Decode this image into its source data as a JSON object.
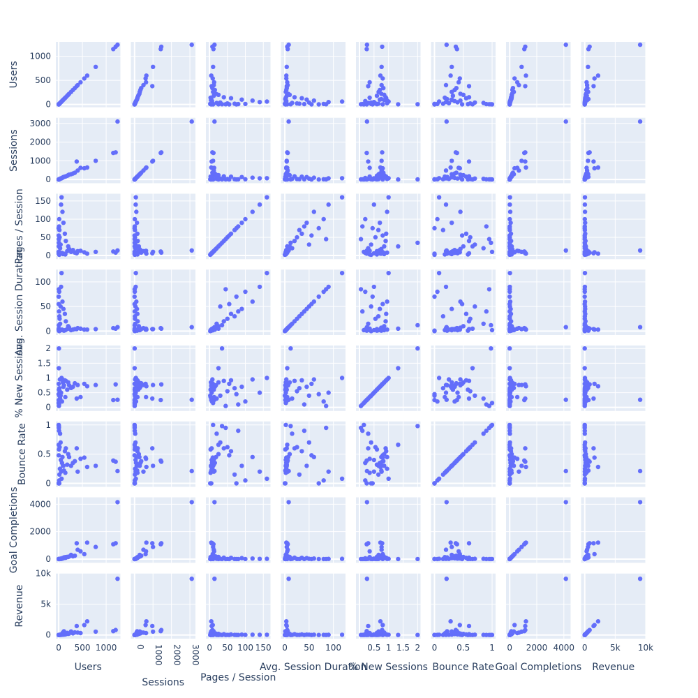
{
  "chart_data": {
    "type": "scatter",
    "subtype": "scatter-matrix",
    "marker_color": "#636efa",
    "background_color": "#e5ecf6",
    "grid_color": "#ffffff",
    "grid": true,
    "dimensions": [
      {
        "label": "Users",
        "range": [
          -60,
          1300
        ],
        "ticks": [
          {
            "v": 0,
            "t": "0"
          },
          {
            "v": 500,
            "t": "500"
          },
          {
            "v": 1000,
            "t": "1000"
          }
        ],
        "x_ticks": [
          {
            "v": 0,
            "t": "0"
          },
          {
            "v": 500,
            "t": "500"
          },
          {
            "v": 1000,
            "t": "1000"
          }
        ]
      },
      {
        "label": "Sessions",
        "range": [
          -200,
          3300
        ],
        "ticks": [
          {
            "v": 0,
            "t": "0"
          },
          {
            "v": 1000,
            "t": "1000"
          },
          {
            "v": 2000,
            "t": "2000"
          },
          {
            "v": 3000,
            "t": "3000"
          }
        ],
        "x_ticks": [
          {
            "v": 0,
            "t": "0"
          },
          {
            "v": 1000,
            "t": "1000"
          },
          {
            "v": 2000,
            "t": "2000"
          },
          {
            "v": 3000,
            "t": "3000"
          }
        ]
      },
      {
        "label": "Pages / Session",
        "range": [
          -10,
          170
        ],
        "ticks": [
          {
            "v": 0,
            "t": "0"
          },
          {
            "v": 50,
            "t": "50"
          },
          {
            "v": 100,
            "t": "100"
          },
          {
            "v": 150,
            "t": "150"
          }
        ],
        "x_ticks": [
          {
            "v": 0,
            "t": "0"
          },
          {
            "v": 50,
            "t": "50"
          },
          {
            "v": 100,
            "t": "100"
          },
          {
            "v": 150,
            "t": "150"
          }
        ]
      },
      {
        "label": "Avg. Session Duration",
        "range": [
          -8,
          125
        ],
        "ticks": [
          {
            "v": 0,
            "t": "0"
          },
          {
            "v": 50,
            "t": "50"
          },
          {
            "v": 100,
            "t": "100"
          }
        ],
        "x_ticks": [
          {
            "v": 0,
            "t": "0"
          },
          {
            "v": 50,
            "t": "50"
          },
          {
            "v": 100,
            "t": "100"
          }
        ]
      },
      {
        "label": "% New Sessions",
        "range": [
          -0.12,
          2.1
        ],
        "ticks": [
          {
            "v": 0,
            "t": "0"
          },
          {
            "v": 0.5,
            "t": "0.5"
          },
          {
            "v": 1,
            "t": "1"
          },
          {
            "v": 1.5,
            "t": "1.5"
          },
          {
            "v": 2,
            "t": "2"
          }
        ],
        "x_ticks": [
          {
            "v": 0.5,
            "t": "0.5"
          },
          {
            "v": 1,
            "t": "1"
          },
          {
            "v": 1.5,
            "t": "1.5"
          },
          {
            "v": 2,
            "t": "2"
          }
        ]
      },
      {
        "label": "Bounce Rate",
        "range": [
          -0.06,
          1.06
        ],
        "ticks": [
          {
            "v": 0,
            "t": "0"
          },
          {
            "v": 0.5,
            "t": "0.5"
          },
          {
            "v": 1,
            "t": "1"
          }
        ],
        "x_ticks": [
          {
            "v": 0,
            "t": "0"
          },
          {
            "v": 0.5,
            "t": "0.5"
          },
          {
            "v": 1,
            "t": "1"
          }
        ]
      },
      {
        "label": "Goal Completions",
        "range": [
          -270,
          4500
        ],
        "ticks": [
          {
            "v": 0,
            "t": "0"
          },
          {
            "v": 2000,
            "t": "2000"
          },
          {
            "v": 4000,
            "t": "4000"
          }
        ],
        "x_ticks": [
          {
            "v": 0,
            "t": "0"
          },
          {
            "v": 2000,
            "t": "2000"
          },
          {
            "v": 4000,
            "t": "4000"
          }
        ]
      },
      {
        "label": "Revenue",
        "range": [
          -600,
          10000
        ],
        "ticks": [
          {
            "v": 0,
            "t": "0"
          },
          {
            "v": 5000,
            "t": "5k"
          },
          {
            "v": 10000,
            "t": "10k"
          }
        ],
        "x_ticks": [
          {
            "v": 0,
            "t": "0"
          },
          {
            "v": 5000,
            "t": "5k"
          },
          {
            "v": 10000,
            "t": "10k"
          }
        ]
      }
    ],
    "records": [
      [
        1240,
        3100,
        14,
        8,
        0.26,
        0.21,
        4150,
        9100
      ],
      [
        1200,
        1450,
        8,
        5,
        0.78,
        0.37,
        1150,
        800
      ],
      [
        1150,
        1420,
        11,
        6,
        0.25,
        0.39,
        1080,
        620
      ],
      [
        780,
        1000,
        10,
        4,
        0.76,
        0.3,
        880,
        540
      ],
      [
        600,
        640,
        5,
        3,
        0.72,
        0.28,
        1200,
        2200
      ],
      [
        540,
        600,
        9,
        3,
        0.8,
        0.44,
        360,
        1600
      ],
      [
        460,
        620,
        13,
        5,
        0.35,
        0.42,
        560,
        300
      ],
      [
        400,
        480,
        12,
        6,
        0.76,
        0.2,
        680,
        380
      ],
      [
        380,
        960,
        6,
        4,
        0.3,
        0.6,
        1150,
        1450
      ],
      [
        340,
        360,
        8,
        4,
        0.82,
        0.38,
        240,
        420
      ],
      [
        300,
        320,
        15,
        3,
        0.7,
        0.35,
        200,
        260
      ],
      [
        260,
        280,
        10,
        2,
        0.66,
        0.3,
        300,
        560
      ],
      [
        220,
        260,
        18,
        7,
        0.75,
        0.45,
        180,
        220
      ],
      [
        200,
        230,
        25,
        10,
        0.85,
        0.5,
        150,
        180
      ],
      [
        180,
        200,
        12,
        4,
        0.6,
        0.32,
        160,
        340
      ],
      [
        150,
        170,
        40,
        20,
        0.9,
        0.6,
        100,
        120
      ],
      [
        130,
        150,
        60,
        35,
        0.92,
        0.55,
        90,
        80
      ],
      [
        100,
        130,
        90,
        45,
        0.7,
        0.3,
        70,
        60
      ],
      [
        80,
        95,
        120,
        60,
        0.95,
        0.45,
        40,
        40
      ],
      [
        60,
        70,
        160,
        118,
        1.0,
        0.08,
        20,
        30
      ],
      [
        50,
        60,
        140,
        90,
        0.5,
        0.2,
        10,
        20
      ],
      [
        40,
        50,
        30,
        50,
        0.4,
        0.7,
        20,
        50
      ],
      [
        30,
        35,
        20,
        15,
        0.3,
        0.85,
        15,
        10
      ],
      [
        20,
        25,
        50,
        25,
        0.55,
        0.62,
        5,
        8
      ],
      [
        15,
        18,
        70,
        30,
        0.65,
        0.15,
        8,
        15
      ],
      [
        10,
        12,
        100,
        80,
        0.2,
        0.05,
        3,
        5
      ],
      [
        8,
        9,
        80,
        40,
        0.1,
        0.9,
        2,
        3
      ],
      [
        5,
        5,
        45,
        85,
        0.05,
        0.95,
        1,
        1
      ],
      [
        4,
        4,
        35,
        12,
        2.0,
        0.98,
        0,
        0
      ],
      [
        3,
        3,
        25,
        5,
        1.33,
        0.66,
        0,
        0
      ],
      [
        2,
        2,
        55,
        55,
        0.8,
        0.48,
        0,
        0
      ],
      [
        1,
        1,
        75,
        70,
        0.45,
        0.0,
        0,
        0
      ],
      [
        1,
        1,
        10,
        2,
        0.15,
        1.0,
        0,
        0
      ],
      [
        2,
        2,
        5,
        1,
        0.25,
        0.0,
        0,
        0
      ],
      [
        6,
        7,
        3,
        1,
        0.6,
        0.58,
        2,
        4
      ],
      [
        12,
        14,
        2,
        0,
        0.4,
        0.0,
        1,
        2
      ],
      [
        25,
        30,
        8,
        3,
        0.95,
        0.25,
        10,
        30
      ],
      [
        45,
        55,
        6,
        2,
        0.5,
        0.4,
        35,
        90
      ],
      [
        70,
        80,
        7,
        3,
        0.2,
        0.35,
        60,
        150
      ],
      [
        90,
        110,
        4,
        2,
        0.85,
        0.3,
        80,
        400
      ],
      [
        110,
        140,
        5,
        1,
        0.75,
        0.22,
        120,
        600
      ],
      [
        140,
        160,
        3,
        2,
        0.35,
        0.18,
        140,
        250
      ]
    ]
  }
}
